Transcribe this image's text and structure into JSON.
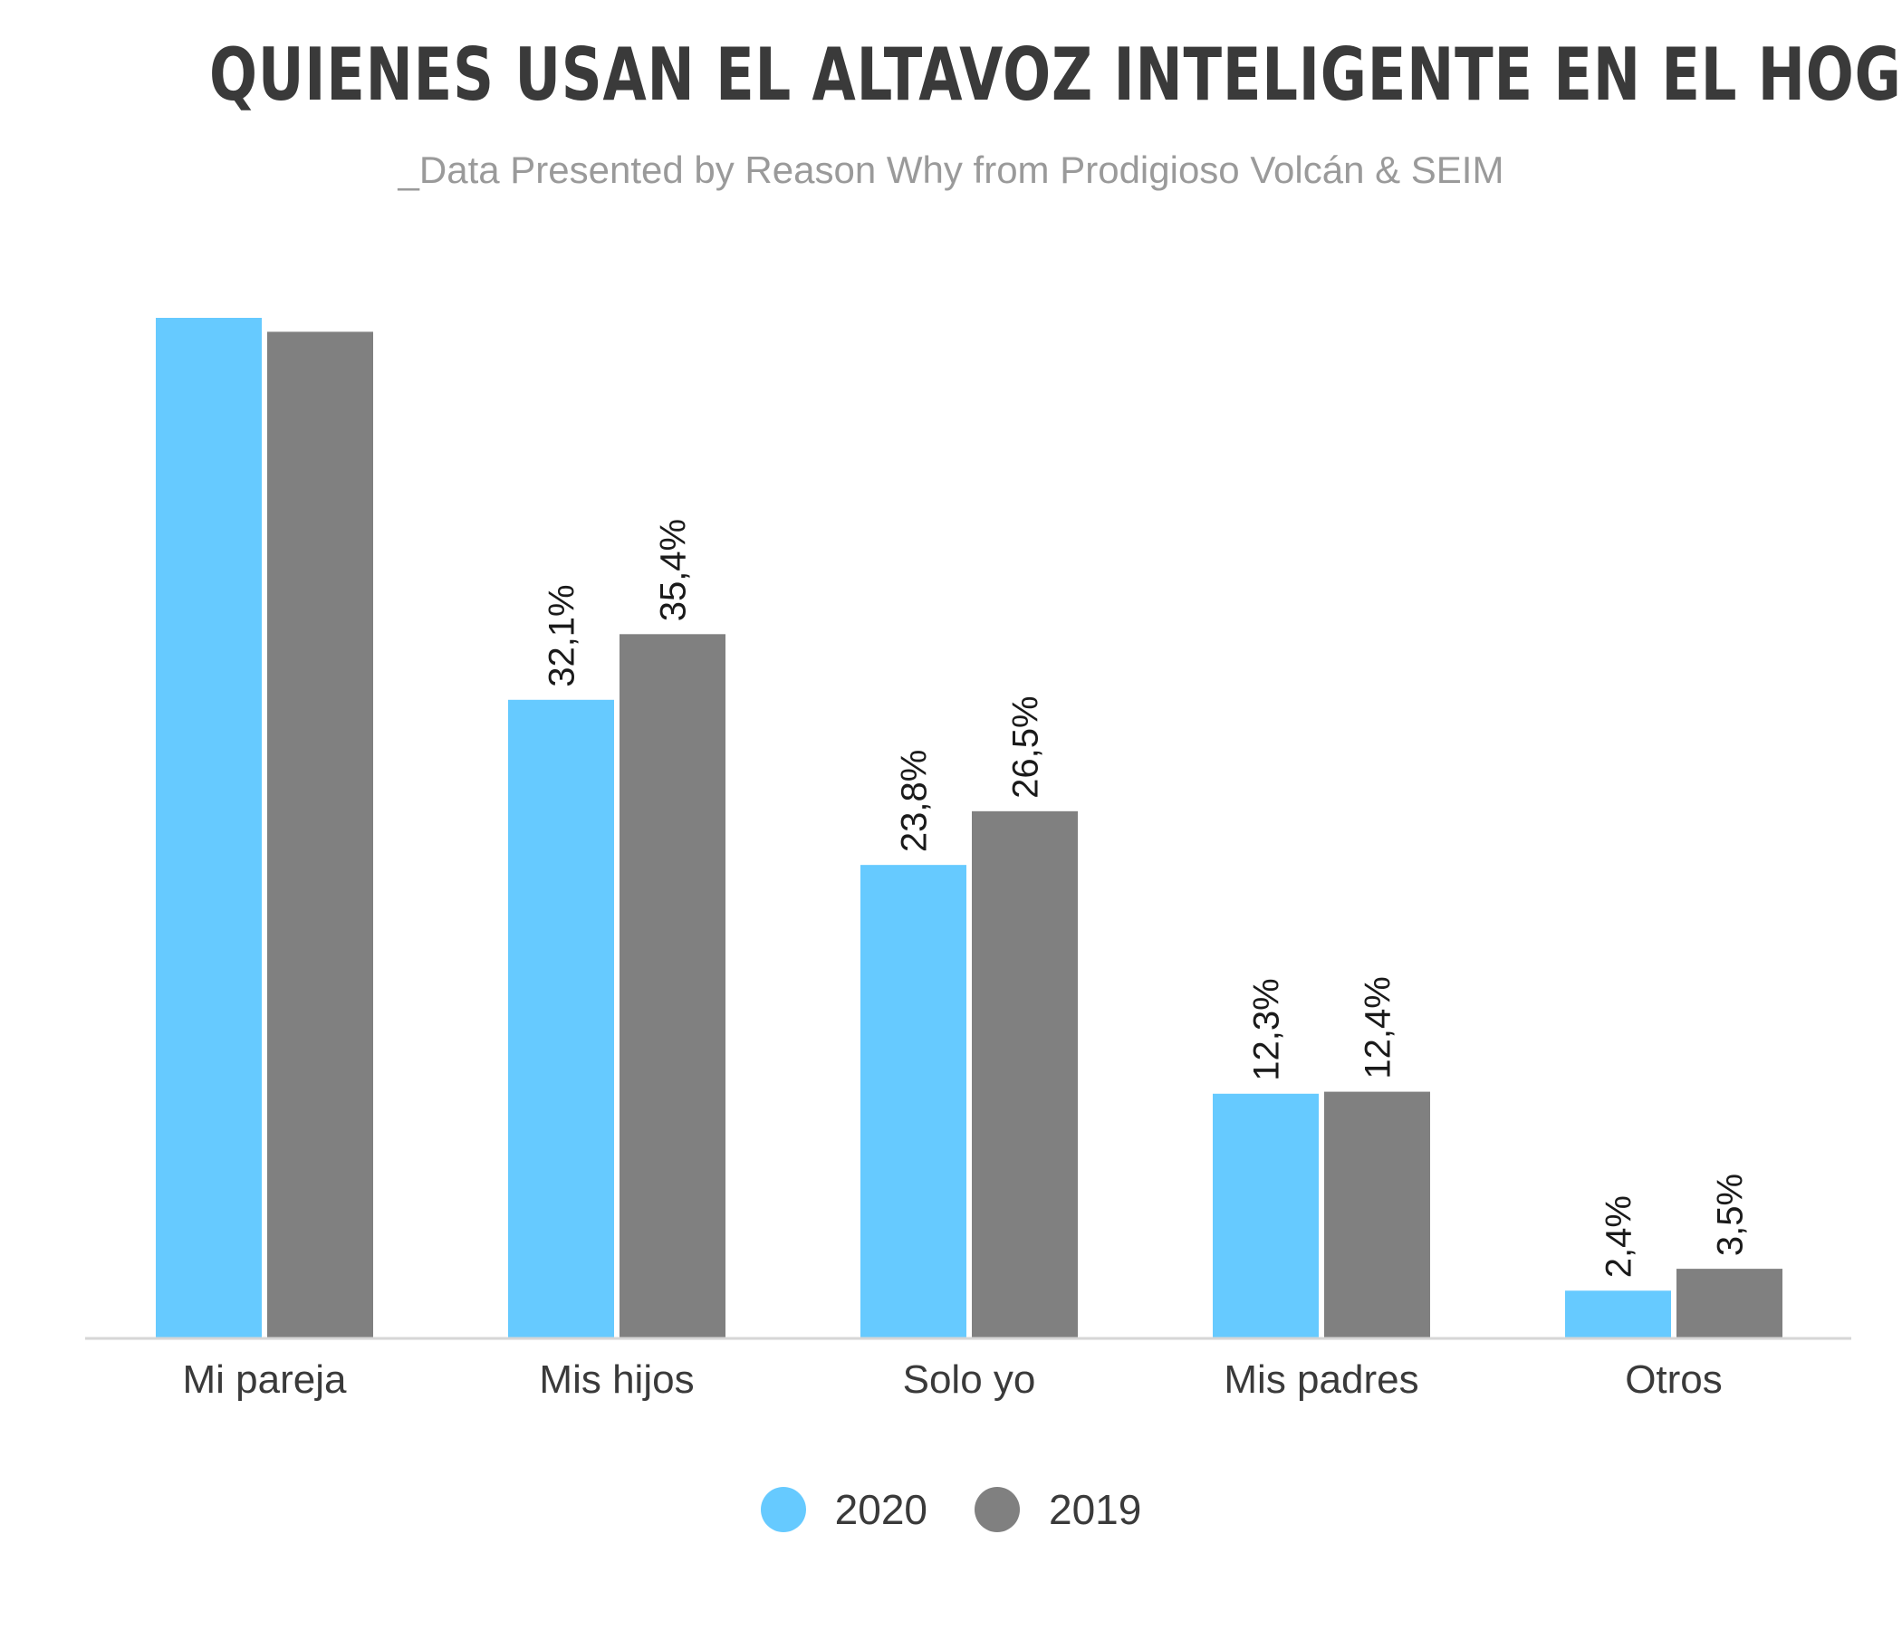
{
  "header": {
    "title": "QUIENES USAN EL ALTAVOZ INTELIGENTE EN EL HOGAR",
    "subtitle": "_Data Presented by Reason Why from Prodigioso Volcán & SEIM"
  },
  "chart_data": {
    "type": "bar",
    "title": "QUIENES USAN EL ALTAVOZ INTELIGENTE EN EL HOGAR",
    "subtitle": "_Data Presented by Reason Why from Prodigioso Volcán & SEIM",
    "categories": [
      "Mi pareja",
      "Mis hijos",
      "Solo yo",
      "Mis padres",
      "Otros"
    ],
    "series": [
      {
        "name": "2020",
        "color": "#66CAFF",
        "values": [
          51.3,
          32.1,
          23.8,
          12.3,
          2.4
        ],
        "labels": [
          "",
          "32,1%",
          "23,8%",
          "12,3%",
          "2,4%"
        ]
      },
      {
        "name": "2019",
        "color": "#808080",
        "values": [
          50.6,
          35.4,
          26.5,
          12.4,
          3.5
        ],
        "labels": [
          "",
          "35,4%",
          "26,5%",
          "12,4%",
          "3,5%"
        ]
      }
    ],
    "xlabel": "",
    "ylabel": "",
    "ylim": [
      0,
      51.3
    ],
    "grid": false,
    "legend": "bottom-center"
  }
}
